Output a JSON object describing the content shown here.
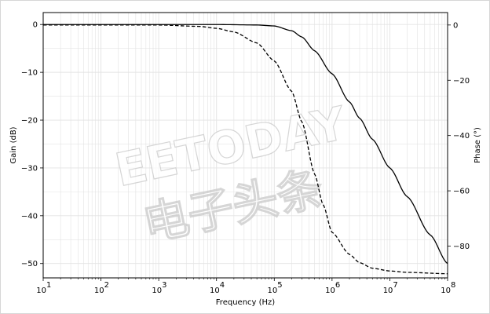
{
  "chart_data": {
    "type": "line",
    "title": "",
    "xlabel": "Frequency (Hz)",
    "ylabel": "Gain (dB)",
    "y2label": "Phase (°)",
    "xscale": "log",
    "xlim": [
      10,
      100000000
    ],
    "ylim": [
      -53,
      2.5
    ],
    "y2lim": [
      -91.5,
      4.5
    ],
    "x_ticks": [
      10,
      100,
      1000,
      10000,
      100000,
      1000000,
      10000000,
      100000000
    ],
    "x_tick_labels": [
      {
        "base": "10",
        "exp": "1"
      },
      {
        "base": "10",
        "exp": "2"
      },
      {
        "base": "10",
        "exp": "3"
      },
      {
        "base": "10",
        "exp": "4"
      },
      {
        "base": "10",
        "exp": "5"
      },
      {
        "base": "10",
        "exp": "6"
      },
      {
        "base": "10",
        "exp": "7"
      },
      {
        "base": "10",
        "exp": "8"
      }
    ],
    "y_ticks": [
      0,
      -10,
      -20,
      -30,
      -40,
      -50
    ],
    "y_tick_labels": [
      "0",
      "−10",
      "−20",
      "−30",
      "−40",
      "−50"
    ],
    "y2_ticks": [
      0,
      -20,
      -40,
      -60,
      -80
    ],
    "y2_tick_labels": [
      "0",
      "−20",
      "−40",
      "−60",
      "−80"
    ],
    "grid": "both-major-minor",
    "series": [
      {
        "axis": "left",
        "style": "solid",
        "x": [
          10,
          1000,
          10000,
          50000,
          100000,
          200000,
          300000,
          500000,
          1000000,
          2000000,
          3000000,
          5000000,
          10000000,
          20000000,
          50000000,
          100000000
        ],
        "y": [
          0,
          0,
          0,
          -0.1,
          -0.3,
          -1.3,
          -2.6,
          -5.5,
          -10.3,
          -16.2,
          -19.6,
          -24,
          -30,
          -36,
          -44,
          -50
        ]
      },
      {
        "axis": "right",
        "style": "dashed",
        "x": [
          10,
          1000,
          5000,
          10000,
          20000,
          50000,
          100000,
          200000,
          300000,
          500000,
          700000,
          1000000,
          2000000,
          3000000,
          5000000,
          10000000,
          20000000,
          100000000
        ],
        "y": [
          0,
          0,
          -0.5,
          -1.2,
          -2.5,
          -6.5,
          -13,
          -24,
          -35,
          -54,
          -65,
          -75,
          -83,
          -86,
          -88,
          -89,
          -89.5,
          -90
        ]
      }
    ],
    "watermark": [
      "EETODAY",
      "电子头条"
    ],
    "colors": {
      "line": "#000000",
      "grid": "#e3e3e3",
      "frame": "#000000"
    }
  }
}
